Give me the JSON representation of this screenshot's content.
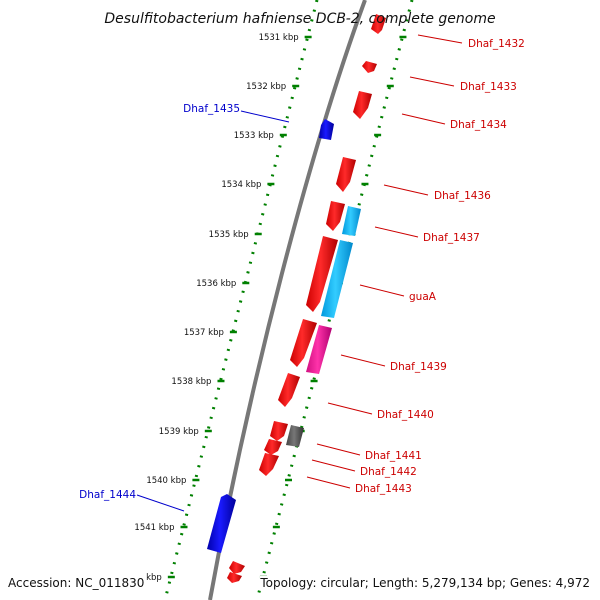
{
  "title": "Desulfitobacterium hafniense DCB-2, complete genome",
  "footer": {
    "accession": "Accession: NC_011830",
    "topology": "Topology: circular; Length: 5,279,134 bp; Genes: 4,972"
  },
  "colors": {
    "forward_gene": "#ff0000",
    "reverse_gene": "#0000ee",
    "rna_gene": "#00bfff",
    "other_gene": "#ff1493",
    "pseudo_gene": "#555555",
    "tick": "#008000",
    "backbone": "#777777"
  },
  "ticks": [
    "1531 kbp",
    "1532 kbp",
    "1533 kbp",
    "1534 kbp",
    "1535 kbp",
    "1536 kbp",
    "1537 kbp",
    "1538 kbp",
    "1539 kbp",
    "1540 kbp",
    "1541 kbp",
    "kbp"
  ],
  "gene_labels": [
    {
      "text": "Dhaf_1432",
      "color": "#cc0000"
    },
    {
      "text": "Dhaf_1433",
      "color": "#cc0000"
    },
    {
      "text": "Dhaf_1434",
      "color": "#cc0000"
    },
    {
      "text": "Dhaf_1435",
      "color": "#0000cc"
    },
    {
      "text": "Dhaf_1436",
      "color": "#cc0000"
    },
    {
      "text": "Dhaf_1437",
      "color": "#cc0000"
    },
    {
      "text": "guaA",
      "color": "#cc0000"
    },
    {
      "text": "Dhaf_1439",
      "color": "#cc0000"
    },
    {
      "text": "Dhaf_1440",
      "color": "#cc0000"
    },
    {
      "text": "Dhaf_1441",
      "color": "#cc0000"
    },
    {
      "text": "Dhaf_1442",
      "color": "#cc0000"
    },
    {
      "text": "Dhaf_1443",
      "color": "#cc0000"
    },
    {
      "text": "Dhaf_1444",
      "color": "#0000cc"
    }
  ]
}
